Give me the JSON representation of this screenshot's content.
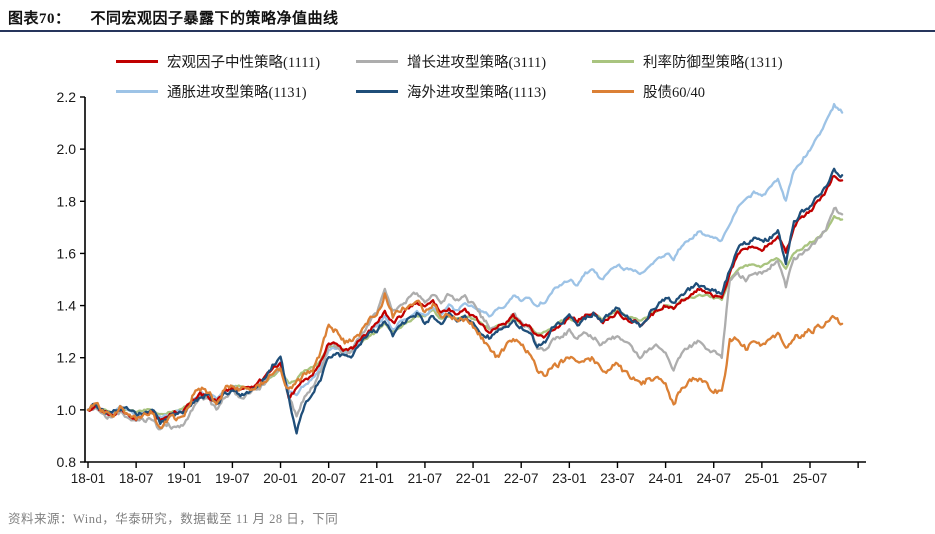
{
  "header": {
    "tag": "图表70：",
    "title": "不同宏观因子暴露下的策略净值曲线"
  },
  "footer": {
    "source": "资料来源：Wind，华泰研究，数据截至 11 月 28 日，下同"
  },
  "colors": {
    "rule": "#26355c",
    "axis": "#000000",
    "tick_text": "#1a1a1a",
    "footer_text": "#7f7f7f"
  },
  "chart_data": {
    "type": "line",
    "title": "不同宏观因子暴露下的策略净值曲线",
    "xlabel": "",
    "ylabel": "",
    "ylim": [
      0.8,
      2.2
    ],
    "y_ticks": [
      0.8,
      1.0,
      1.2,
      1.4,
      1.6,
      1.8,
      2.0,
      2.2
    ],
    "x_tick_labels": [
      "18-01",
      "18-07",
      "19-01",
      "19-07",
      "20-01",
      "20-07",
      "21-01",
      "21-07",
      "22-01",
      "22-07",
      "23-01",
      "23-07",
      "24-01",
      "24-07",
      "25-01",
      "25-07"
    ],
    "x_months_start": "2018-01",
    "x_months_end": "2025-11",
    "grid": false,
    "legend_position": "top",
    "series": [
      {
        "id": "neutral-1111",
        "name": "宏观因子中性策略(1111)",
        "color": "#C00000",
        "noise": 0.014,
        "z": 4,
        "values": [
          1.0,
          1.01,
          0.99,
          0.98,
          1.0,
          0.99,
          0.97,
          0.98,
          0.99,
          0.96,
          0.98,
          0.99,
          1.0,
          1.04,
          1.06,
          1.05,
          1.03,
          1.07,
          1.08,
          1.08,
          1.08,
          1.1,
          1.12,
          1.16,
          1.18,
          1.05,
          1.08,
          1.12,
          1.13,
          1.18,
          1.26,
          1.25,
          1.23,
          1.24,
          1.27,
          1.3,
          1.33,
          1.38,
          1.33,
          1.36,
          1.39,
          1.41,
          1.4,
          1.42,
          1.38,
          1.39,
          1.37,
          1.38,
          1.36,
          1.33,
          1.3,
          1.32,
          1.33,
          1.36,
          1.33,
          1.32,
          1.28,
          1.28,
          1.31,
          1.33,
          1.35,
          1.34,
          1.36,
          1.37,
          1.33,
          1.35,
          1.37,
          1.35,
          1.34,
          1.33,
          1.36,
          1.38,
          1.4,
          1.38,
          1.42,
          1.44,
          1.46,
          1.45,
          1.44,
          1.43,
          1.52,
          1.6,
          1.62,
          1.63,
          1.62,
          1.64,
          1.66,
          1.6,
          1.7,
          1.74,
          1.76,
          1.8,
          1.84,
          1.9,
          1.88
        ]
      },
      {
        "id": "growth-3111",
        "name": "增长进攻型策略(3111)",
        "color": "#ADADAD",
        "noise": 0.016,
        "z": 3,
        "values": [
          1.0,
          1.01,
          0.98,
          0.97,
          0.99,
          0.97,
          0.95,
          0.96,
          0.97,
          0.92,
          0.94,
          0.93,
          0.95,
          1.0,
          1.05,
          1.04,
          1.0,
          1.05,
          1.07,
          1.05,
          1.06,
          1.08,
          1.1,
          1.14,
          1.16,
          1.05,
          0.98,
          1.05,
          1.09,
          1.15,
          1.25,
          1.24,
          1.21,
          1.23,
          1.28,
          1.33,
          1.37,
          1.46,
          1.38,
          1.4,
          1.43,
          1.45,
          1.42,
          1.45,
          1.42,
          1.44,
          1.42,
          1.43,
          1.4,
          1.36,
          1.32,
          1.3,
          1.33,
          1.37,
          1.34,
          1.31,
          1.24,
          1.22,
          1.28,
          1.28,
          1.3,
          1.28,
          1.3,
          1.28,
          1.25,
          1.27,
          1.28,
          1.25,
          1.23,
          1.2,
          1.24,
          1.25,
          1.22,
          1.15,
          1.22,
          1.24,
          1.26,
          1.24,
          1.22,
          1.2,
          1.5,
          1.52,
          1.5,
          1.53,
          1.52,
          1.55,
          1.57,
          1.47,
          1.58,
          1.6,
          1.62,
          1.66,
          1.7,
          1.77,
          1.75
        ]
      },
      {
        "id": "rate-defense-1311",
        "name": "利率防御型策略(1311)",
        "color": "#A9C47F",
        "noise": 0.008,
        "z": 1,
        "values": [
          1.0,
          1.01,
          1.0,
          0.99,
          1.0,
          1.0,
          0.99,
          1.0,
          1.0,
          0.98,
          0.99,
          1.0,
          1.01,
          1.03,
          1.05,
          1.05,
          1.04,
          1.07,
          1.09,
          1.09,
          1.08,
          1.09,
          1.1,
          1.13,
          1.15,
          1.1,
          1.12,
          1.15,
          1.16,
          1.19,
          1.24,
          1.24,
          1.23,
          1.24,
          1.26,
          1.28,
          1.3,
          1.33,
          1.3,
          1.32,
          1.34,
          1.36,
          1.36,
          1.38,
          1.35,
          1.36,
          1.35,
          1.36,
          1.35,
          1.33,
          1.31,
          1.32,
          1.33,
          1.35,
          1.33,
          1.32,
          1.29,
          1.3,
          1.32,
          1.34,
          1.35,
          1.34,
          1.36,
          1.37,
          1.35,
          1.36,
          1.38,
          1.36,
          1.35,
          1.34,
          1.36,
          1.38,
          1.4,
          1.39,
          1.42,
          1.43,
          1.44,
          1.44,
          1.43,
          1.42,
          1.5,
          1.54,
          1.55,
          1.56,
          1.55,
          1.57,
          1.58,
          1.54,
          1.6,
          1.62,
          1.64,
          1.66,
          1.69,
          1.74,
          1.73
        ]
      },
      {
        "id": "inflation-1131",
        "name": "通胀进攻型策略(1131)",
        "color": "#9DC3E6",
        "noise": 0.012,
        "z": 2,
        "values": [
          1.0,
          1.01,
          0.99,
          0.99,
          1.01,
          1.0,
          0.98,
          0.99,
          1.0,
          0.97,
          0.98,
          0.99,
          1.0,
          1.03,
          1.06,
          1.06,
          1.04,
          1.07,
          1.09,
          1.08,
          1.08,
          1.1,
          1.12,
          1.16,
          1.18,
          1.08,
          1.05,
          1.1,
          1.12,
          1.16,
          1.23,
          1.24,
          1.22,
          1.23,
          1.27,
          1.3,
          1.32,
          1.36,
          1.31,
          1.34,
          1.36,
          1.38,
          1.36,
          1.39,
          1.36,
          1.4,
          1.38,
          1.41,
          1.4,
          1.38,
          1.36,
          1.38,
          1.4,
          1.44,
          1.42,
          1.43,
          1.4,
          1.42,
          1.46,
          1.48,
          1.5,
          1.48,
          1.52,
          1.54,
          1.5,
          1.53,
          1.56,
          1.54,
          1.53,
          1.52,
          1.56,
          1.58,
          1.6,
          1.58,
          1.63,
          1.65,
          1.68,
          1.67,
          1.66,
          1.65,
          1.72,
          1.78,
          1.8,
          1.83,
          1.82,
          1.85,
          1.88,
          1.8,
          1.92,
          1.96,
          2.0,
          2.05,
          2.1,
          2.17,
          2.14
        ]
      },
      {
        "id": "overseas-1113",
        "name": "海外进攻型策略(1113)",
        "color": "#1F4E79",
        "noise": 0.016,
        "z": 5,
        "values": [
          1.0,
          1.02,
          0.99,
          0.99,
          1.01,
          1.0,
          0.98,
          0.99,
          1.0,
          0.95,
          0.97,
          0.98,
          0.99,
          1.03,
          1.05,
          1.06,
          1.02,
          1.06,
          1.08,
          1.06,
          1.07,
          1.09,
          1.12,
          1.17,
          1.2,
          1.05,
          0.92,
          1.02,
          1.07,
          1.12,
          1.2,
          1.22,
          1.2,
          1.21,
          1.26,
          1.3,
          1.3,
          1.34,
          1.28,
          1.32,
          1.35,
          1.37,
          1.33,
          1.36,
          1.33,
          1.37,
          1.34,
          1.36,
          1.34,
          1.3,
          1.28,
          1.3,
          1.32,
          1.34,
          1.32,
          1.3,
          1.24,
          1.26,
          1.32,
          1.34,
          1.36,
          1.33,
          1.35,
          1.37,
          1.34,
          1.37,
          1.39,
          1.36,
          1.34,
          1.32,
          1.37,
          1.4,
          1.43,
          1.41,
          1.45,
          1.46,
          1.48,
          1.47,
          1.46,
          1.44,
          1.54,
          1.62,
          1.64,
          1.66,
          1.64,
          1.66,
          1.68,
          1.56,
          1.72,
          1.76,
          1.78,
          1.82,
          1.86,
          1.92,
          1.9
        ]
      },
      {
        "id": "stock-bond-6040",
        "name": "股债60/40",
        "color": "#DB8035",
        "noise": 0.022,
        "z": 6,
        "values": [
          1.0,
          1.03,
          0.99,
          0.98,
          1.01,
          0.97,
          0.96,
          0.98,
          0.99,
          0.94,
          0.97,
          0.96,
          0.98,
          1.05,
          1.08,
          1.07,
          1.02,
          1.08,
          1.1,
          1.07,
          1.08,
          1.1,
          1.1,
          1.14,
          1.16,
          1.08,
          1.1,
          1.14,
          1.14,
          1.22,
          1.32,
          1.3,
          1.26,
          1.27,
          1.3,
          1.35,
          1.36,
          1.44,
          1.36,
          1.38,
          1.4,
          1.41,
          1.38,
          1.4,
          1.36,
          1.37,
          1.34,
          1.35,
          1.32,
          1.28,
          1.24,
          1.2,
          1.24,
          1.28,
          1.25,
          1.22,
          1.15,
          1.12,
          1.18,
          1.18,
          1.2,
          1.18,
          1.19,
          1.2,
          1.15,
          1.16,
          1.18,
          1.14,
          1.12,
          1.09,
          1.12,
          1.12,
          1.1,
          1.02,
          1.09,
          1.11,
          1.12,
          1.1,
          1.08,
          1.06,
          1.26,
          1.28,
          1.24,
          1.26,
          1.24,
          1.26,
          1.28,
          1.24,
          1.28,
          1.29,
          1.3,
          1.32,
          1.34,
          1.36,
          1.33
        ]
      }
    ]
  }
}
